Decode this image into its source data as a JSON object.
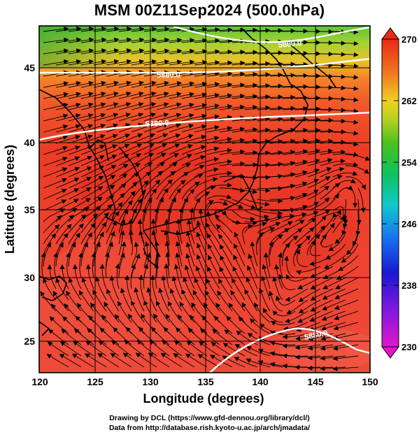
{
  "title": "MSM 00Z11Sep2024 (500.0hPa)",
  "axes": {
    "xlabel": "Longitude (degrees)",
    "ylabel": "Latitude (degrees)",
    "x_ticks": [
      "120",
      "125",
      "130",
      "135",
      "140",
      "145",
      "150"
    ],
    "y_ticks": [
      "25",
      "30",
      "35",
      "40",
      "45"
    ],
    "x_range": [
      120,
      150
    ],
    "y_range": [
      22.4,
      47.6
    ]
  },
  "colorbar": {
    "ticks": [
      "230",
      "238",
      "246",
      "254",
      "262",
      "270"
    ],
    "range": [
      230,
      270
    ],
    "extend": "both"
  },
  "contours": [
    {
      "label": "5880.0"
    },
    {
      "label": "5880.0"
    },
    {
      "label": "5880.0"
    },
    {
      "label": "5880.0"
    }
  ],
  "credits": {
    "line1": "Drawing by DCL (https://www.gfd-dennou.org/library/dcl/)",
    "line2": "Data from http://database.rish.kyoto-u.ac.jp/arch/jmadata/"
  },
  "colors": {
    "warm": "#ee3c28",
    "cold_edge": "#5cc83c",
    "contour": "#ffffff",
    "coast": "#000000"
  }
}
